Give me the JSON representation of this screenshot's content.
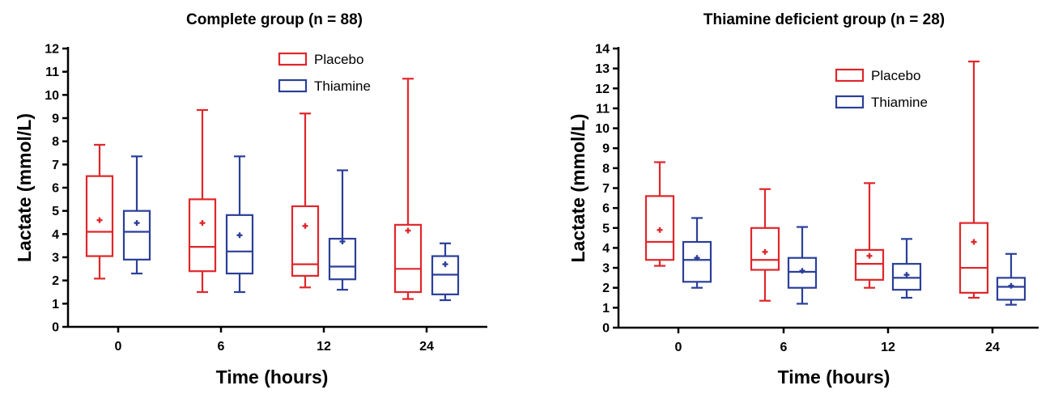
{
  "chart_data": [
    {
      "type": "box",
      "title": "Complete group  (n = 88)",
      "xlabel": "Time (hours)",
      "ylabel": "Lactate (mmol/L)",
      "categories": [
        "0",
        "6",
        "12",
        "24"
      ],
      "ylim": [
        0,
        12
      ],
      "yticks": [
        0,
        1,
        2,
        3,
        4,
        5,
        6,
        7,
        8,
        9,
        10,
        11,
        12
      ],
      "legend_position": "top-right",
      "series": [
        {
          "name": "Placebo",
          "color": "#e0262a",
          "boxes": [
            {
              "min": 2.08,
              "q1": 3.05,
              "median": 4.1,
              "q3": 6.5,
              "max": 7.85,
              "mean": 4.6
            },
            {
              "min": 1.5,
              "q1": 2.4,
              "median": 3.45,
              "q3": 5.5,
              "max": 9.35,
              "mean": 4.48
            },
            {
              "min": 1.7,
              "q1": 2.2,
              "median": 2.7,
              "q3": 5.2,
              "max": 9.2,
              "mean": 4.35
            },
            {
              "min": 1.2,
              "q1": 1.5,
              "median": 2.5,
              "q3": 4.4,
              "max": 10.7,
              "mean": 4.15
            }
          ]
        },
        {
          "name": "Thiamine",
          "color": "#2b3f99",
          "boxes": [
            {
              "min": 2.3,
              "q1": 2.9,
              "median": 4.1,
              "q3": 5.0,
              "max": 7.35,
              "mean": 4.48
            },
            {
              "min": 1.5,
              "q1": 2.3,
              "median": 3.25,
              "q3": 4.82,
              "max": 7.35,
              "mean": 3.95
            },
            {
              "min": 1.6,
              "q1": 2.05,
              "median": 2.6,
              "q3": 3.8,
              "max": 6.75,
              "mean": 3.68
            },
            {
              "min": 1.15,
              "q1": 1.4,
              "median": 2.25,
              "q3": 3.05,
              "max": 3.6,
              "mean": 2.7
            }
          ]
        }
      ]
    },
    {
      "type": "box",
      "title": "Thiamine deficient group (n = 28)",
      "xlabel": "Time (hours)",
      "ylabel": "Lactate (mmol/L)",
      "categories": [
        "0",
        "6",
        "12",
        "24"
      ],
      "ylim": [
        0,
        14
      ],
      "yticks": [
        0,
        1,
        2,
        3,
        4,
        5,
        6,
        7,
        8,
        9,
        10,
        11,
        12,
        13,
        14
      ],
      "legend_position": "top-right",
      "series": [
        {
          "name": "Placebo",
          "color": "#e0262a",
          "boxes": [
            {
              "min": 3.1,
              "q1": 3.4,
              "median": 4.3,
              "q3": 6.6,
              "max": 8.3,
              "mean": 4.9
            },
            {
              "min": 1.35,
              "q1": 2.9,
              "median": 3.4,
              "q3": 5.0,
              "max": 6.95,
              "mean": 3.8
            },
            {
              "min": 2.0,
              "q1": 2.4,
              "median": 3.2,
              "q3": 3.9,
              "max": 7.25,
              "mean": 3.6
            },
            {
              "min": 1.5,
              "q1": 1.75,
              "median": 3.0,
              "q3": 5.25,
              "max": 13.35,
              "mean": 4.3
            }
          ]
        },
        {
          "name": "Thiamine",
          "color": "#2b3f99",
          "boxes": [
            {
              "min": 2.0,
              "q1": 2.3,
              "median": 3.4,
              "q3": 4.3,
              "max": 5.5,
              "mean": 3.5
            },
            {
              "min": 1.2,
              "q1": 2.0,
              "median": 2.8,
              "q3": 3.5,
              "max": 5.05,
              "mean": 2.85
            },
            {
              "min": 1.5,
              "q1": 1.9,
              "median": 2.5,
              "q3": 3.2,
              "max": 4.45,
              "mean": 2.65
            },
            {
              "min": 1.15,
              "q1": 1.4,
              "median": 2.05,
              "q3": 2.5,
              "max": 3.7,
              "mean": 2.1
            }
          ]
        }
      ]
    }
  ]
}
